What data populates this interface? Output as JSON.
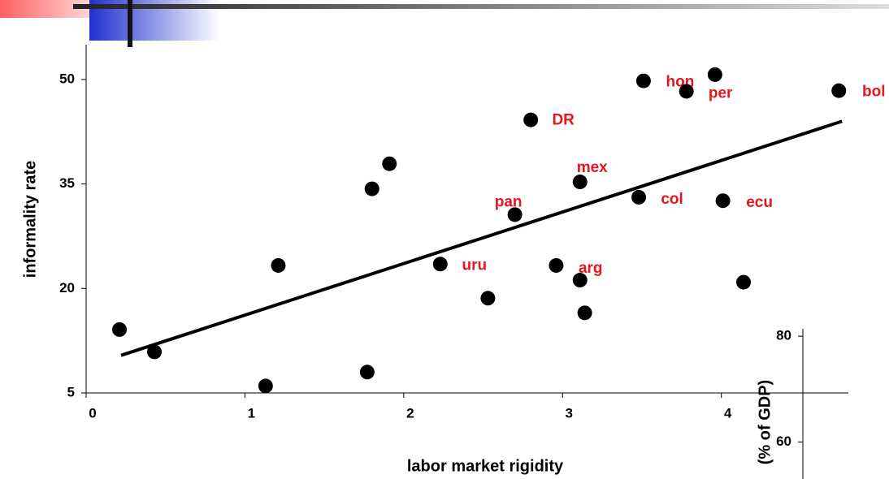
{
  "chart_data": [
    {
      "type": "scatter",
      "x_label": "labor market rigidity",
      "y_label": "informality rate",
      "xlim": [
        0,
        4.8
      ],
      "xticks": [
        0,
        1,
        2,
        3,
        4
      ],
      "ylim": [
        5,
        55
      ],
      "yticks": [
        5,
        20,
        35,
        50
      ],
      "series": [
        {
          "color": "#000000",
          "x": [
            0.21,
            0.43,
            1.13,
            1.21,
            1.8,
            1.91,
            1.77,
            2.23,
            2.53,
            2.7,
            2.8,
            2.96,
            3.11,
            3.14,
            3.11,
            3.48,
            3.51,
            3.78,
            3.96,
            4.01,
            4.14,
            4.74
          ],
          "values": [
            14.1,
            10.9,
            6.0,
            23.3,
            34.3,
            37.9,
            8.0,
            23.5,
            18.6,
            30.6,
            44.2,
            23.3,
            21.2,
            16.5,
            35.3,
            33.1,
            49.8,
            48.3,
            50.7,
            32.6,
            20.9,
            48.4
          ],
          "point_labels": [
            null,
            null,
            null,
            null,
            null,
            null,
            null,
            "uru",
            null,
            "pan",
            "DR",
            null,
            "arg",
            null,
            "mex",
            "col",
            "hon",
            "per",
            null,
            "ecu",
            null,
            "bol"
          ],
          "label_color": "#e8141e"
        }
      ],
      "trendline": {
        "color": "#000000",
        "x": [
          0.22,
          4.76
        ],
        "values": [
          10.4,
          44.0
        ]
      }
    },
    {
      "type": "axis",
      "y_label": "(% of GDP)",
      "ylim": [
        53,
        81.4
      ],
      "yticks": [
        60,
        80
      ]
    }
  ]
}
